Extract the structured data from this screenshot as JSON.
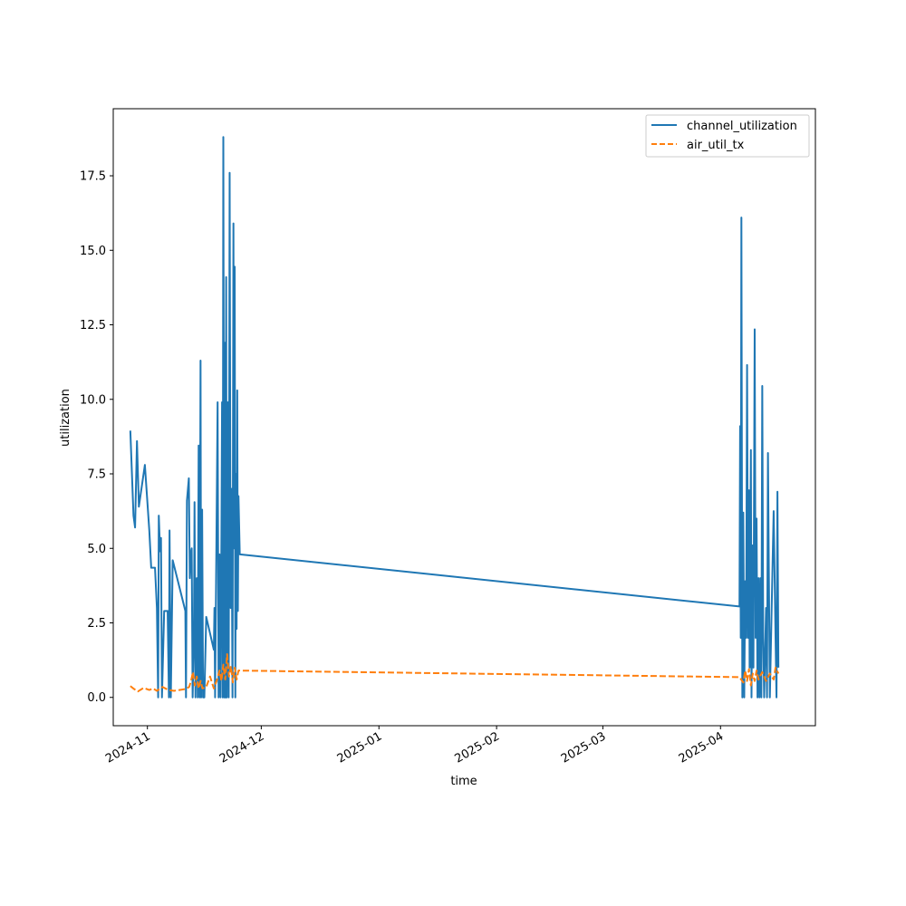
{
  "chart_data": {
    "type": "line",
    "xlabel": "time",
    "ylabel": "utilization",
    "x_axis_type": "date",
    "xlim": [
      "2024-10-23",
      "2025-04-26"
    ],
    "ylim": [
      -0.95,
      19.75
    ],
    "x_ticks": [
      {
        "date": "2024-11-01",
        "label": "2024-11"
      },
      {
        "date": "2024-12-01",
        "label": "2024-12"
      },
      {
        "date": "2025-01-01",
        "label": "2025-01"
      },
      {
        "date": "2025-02-01",
        "label": "2025-02"
      },
      {
        "date": "2025-03-01",
        "label": "2025-03"
      },
      {
        "date": "2025-04-01",
        "label": "2025-04"
      }
    ],
    "y_ticks": [
      {
        "value": 0,
        "label": "0.0"
      },
      {
        "value": 2.5,
        "label": "2.5"
      },
      {
        "value": 5,
        "label": "5.0"
      },
      {
        "value": 7.5,
        "label": "7.5"
      },
      {
        "value": 10,
        "label": "10.0"
      },
      {
        "value": 12.5,
        "label": "12.5"
      },
      {
        "value": 15,
        "label": "15.0"
      },
      {
        "value": 17.5,
        "label": "17.5"
      }
    ],
    "grid": false,
    "legend_position": "top-right",
    "series": [
      {
        "name": "channel_utilization",
        "color": "#1f77b4",
        "style": "solid",
        "points": [
          [
            "2024-10-27T12:00",
            8.95
          ],
          [
            "2024-10-28T08:00",
            6.1
          ],
          [
            "2024-10-28T18:00",
            5.7
          ],
          [
            "2024-10-29T06:00",
            8.6
          ],
          [
            "2024-10-29T18:00",
            6.4
          ],
          [
            "2024-10-31T08:00",
            7.8
          ],
          [
            "2024-11-01T12:00",
            5.6
          ],
          [
            "2024-11-02T00:00",
            4.35
          ],
          [
            "2024-11-03T00:00",
            4.35
          ],
          [
            "2024-11-03T12:00",
            3.0
          ],
          [
            "2024-11-03T20:00",
            0.0
          ],
          [
            "2024-11-04T00:00",
            6.1
          ],
          [
            "2024-11-04T08:00",
            4.9
          ],
          [
            "2024-11-04T14:00",
            5.35
          ],
          [
            "2024-11-04T20:00",
            0.0
          ],
          [
            "2024-11-05T10:00",
            2.9
          ],
          [
            "2024-11-06T08:00",
            2.9
          ],
          [
            "2024-11-06T16:00",
            0.0
          ],
          [
            "2024-11-06T20:00",
            5.6
          ],
          [
            "2024-11-07T04:00",
            0.0
          ],
          [
            "2024-11-07T16:00",
            4.6
          ],
          [
            "2024-11-11T00:00",
            2.9
          ],
          [
            "2024-11-11T04:00",
            0.0
          ],
          [
            "2024-11-11T10:00",
            6.6
          ],
          [
            "2024-11-11T22:00",
            7.35
          ],
          [
            "2024-11-12T04:00",
            4.0
          ],
          [
            "2024-11-12T10:00",
            4.8
          ],
          [
            "2024-11-12T16:00",
            5.0
          ],
          [
            "2024-11-12T22:00",
            0.0
          ],
          [
            "2024-11-13T06:00",
            2.0
          ],
          [
            "2024-11-13T10:00",
            6.55
          ],
          [
            "2024-11-13T16:00",
            0.0
          ],
          [
            "2024-11-14T00:00",
            4.0
          ],
          [
            "2024-11-14T06:00",
            0.0
          ],
          [
            "2024-11-14T12:00",
            8.45
          ],
          [
            "2024-11-14T18:00",
            0.0
          ],
          [
            "2024-11-15T00:00",
            11.3
          ],
          [
            "2024-11-15T04:00",
            0.0
          ],
          [
            "2024-11-15T10:00",
            6.3
          ],
          [
            "2024-11-15T16:00",
            0.0
          ],
          [
            "2024-11-16T00:00",
            0.0
          ],
          [
            "2024-11-16T12:00",
            2.7
          ],
          [
            "2024-11-18T12:00",
            1.6
          ],
          [
            "2024-11-18T16:00",
            3.0
          ],
          [
            "2024-11-18T20:00",
            0.0
          ],
          [
            "2024-11-19T12:00",
            9.9
          ],
          [
            "2024-11-19T18:00",
            0.0
          ],
          [
            "2024-11-20T00:00",
            4.8
          ],
          [
            "2024-11-20T06:00",
            0.0
          ],
          [
            "2024-11-20T12:00",
            5.4
          ],
          [
            "2024-11-20T16:00",
            9.9
          ],
          [
            "2024-11-20T20:00",
            0.0
          ],
          [
            "2024-11-21T00:00",
            18.8
          ],
          [
            "2024-11-21T06:00",
            0.0
          ],
          [
            "2024-11-21T10:00",
            11.9
          ],
          [
            "2024-11-21T14:00",
            0.0
          ],
          [
            "2024-11-21T18:00",
            14.1
          ],
          [
            "2024-11-21T22:00",
            0.0
          ],
          [
            "2024-11-22T04:00",
            9.9
          ],
          [
            "2024-11-22T10:00",
            0.0
          ],
          [
            "2024-11-22T16:00",
            17.6
          ],
          [
            "2024-11-22T22:00",
            3.0
          ],
          [
            "2024-11-23T04:00",
            7.0
          ],
          [
            "2024-11-23T10:00",
            0.0
          ],
          [
            "2024-11-23T16:00",
            15.9
          ],
          [
            "2024-11-23T20:00",
            5.0
          ],
          [
            "2024-11-24T00:00",
            14.45
          ],
          [
            "2024-11-24T04:00",
            0.0
          ],
          [
            "2024-11-24T08:00",
            7.5
          ],
          [
            "2024-11-24T12:00",
            2.3
          ],
          [
            "2024-11-24T16:00",
            10.3
          ],
          [
            "2024-11-24T20:00",
            2.9
          ],
          [
            "2024-11-25T00:00",
            6.75
          ],
          [
            "2024-11-25T08:00",
            4.8
          ],
          [
            "2025-04-06T00:00",
            3.05
          ],
          [
            "2025-04-06T04:00",
            9.1
          ],
          [
            "2025-04-06T08:00",
            2.0
          ],
          [
            "2025-04-06T12:00",
            16.1
          ],
          [
            "2025-04-06T18:00",
            0.0
          ],
          [
            "2025-04-07T00:00",
            6.2
          ],
          [
            "2025-04-07T06:00",
            0.0
          ],
          [
            "2025-04-07T12:00",
            3.9
          ],
          [
            "2025-04-07T18:00",
            2.0
          ],
          [
            "2025-04-08T00:00",
            11.15
          ],
          [
            "2025-04-08T06:00",
            2.0
          ],
          [
            "2025-04-08T12:00",
            6.95
          ],
          [
            "2025-04-08T16:00",
            1.0
          ],
          [
            "2025-04-09T00:00",
            8.3
          ],
          [
            "2025-04-09T04:00",
            0.0
          ],
          [
            "2025-04-09T10:00",
            5.1
          ],
          [
            "2025-04-09T16:00",
            1.0
          ],
          [
            "2025-04-10T00:00",
            12.35
          ],
          [
            "2025-04-10T06:00",
            2.0
          ],
          [
            "2025-04-10T12:00",
            6.0
          ],
          [
            "2025-04-10T18:00",
            0.0
          ],
          [
            "2025-04-11T00:00",
            4.0
          ],
          [
            "2025-04-11T06:00",
            0.0
          ],
          [
            "2025-04-11T12:00",
            4.0
          ],
          [
            "2025-04-11T18:00",
            0.0
          ],
          [
            "2025-04-12T00:00",
            10.45
          ],
          [
            "2025-04-12T06:00",
            2.0
          ],
          [
            "2025-04-12T12:00",
            0.0
          ],
          [
            "2025-04-13T00:00",
            3.0
          ],
          [
            "2025-04-13T06:00",
            0.0
          ],
          [
            "2025-04-13T12:00",
            8.2
          ],
          [
            "2025-04-13T18:00",
            4.0
          ],
          [
            "2025-04-14T00:00",
            0.0
          ],
          [
            "2025-04-15T00:00",
            6.25
          ],
          [
            "2025-04-15T12:00",
            2.0
          ],
          [
            "2025-04-15T18:00",
            0.0
          ],
          [
            "2025-04-16T00:00",
            6.9
          ],
          [
            "2025-04-16T06:00",
            1.0
          ]
        ]
      },
      {
        "name": "air_util_tx",
        "color": "#ff7f0e",
        "style": "dashed",
        "points": [
          [
            "2024-10-27T12:00",
            0.38
          ],
          [
            "2024-10-28T12:00",
            0.28
          ],
          [
            "2024-10-29T12:00",
            0.2
          ],
          [
            "2024-10-31T00:00",
            0.32
          ],
          [
            "2024-11-01T12:00",
            0.25
          ],
          [
            "2024-11-02T12:00",
            0.3
          ],
          [
            "2024-11-03T12:00",
            0.22
          ],
          [
            "2024-11-05T00:00",
            0.35
          ],
          [
            "2024-11-06T12:00",
            0.25
          ],
          [
            "2024-11-08T00:00",
            0.22
          ],
          [
            "2024-11-11T00:00",
            0.28
          ],
          [
            "2024-11-12T00:00",
            0.35
          ],
          [
            "2024-11-12T12:00",
            0.55
          ],
          [
            "2024-11-13T00:00",
            0.85
          ],
          [
            "2024-11-13T12:00",
            0.4
          ],
          [
            "2024-11-14T00:00",
            0.7
          ],
          [
            "2024-11-14T12:00",
            0.3
          ],
          [
            "2024-11-15T00:00",
            0.55
          ],
          [
            "2024-11-15T12:00",
            0.3
          ],
          [
            "2024-11-16T12:00",
            0.35
          ],
          [
            "2024-11-17T12:00",
            0.7
          ],
          [
            "2024-11-18T12:00",
            0.3
          ],
          [
            "2024-11-19T12:00",
            0.65
          ],
          [
            "2024-11-20T00:00",
            0.9
          ],
          [
            "2024-11-20T12:00",
            0.55
          ],
          [
            "2024-11-21T00:00",
            1.1
          ],
          [
            "2024-11-21T12:00",
            0.6
          ],
          [
            "2024-11-22T00:00",
            1.45
          ],
          [
            "2024-11-22T12:00",
            0.7
          ],
          [
            "2024-11-23T00:00",
            1.05
          ],
          [
            "2024-11-23T12:00",
            0.5
          ],
          [
            "2024-11-24T00:00",
            1.0
          ],
          [
            "2024-11-24T12:00",
            0.6
          ],
          [
            "2024-11-25T00:00",
            0.9
          ],
          [
            "2025-04-06T00:00",
            0.68
          ],
          [
            "2025-04-07T00:00",
            0.5
          ],
          [
            "2025-04-07T12:00",
            0.9
          ],
          [
            "2025-04-08T00:00",
            0.55
          ],
          [
            "2025-04-08T12:00",
            0.95
          ],
          [
            "2025-04-09T00:00",
            0.4
          ],
          [
            "2025-04-09T12:00",
            0.8
          ],
          [
            "2025-04-10T00:00",
            0.55
          ],
          [
            "2025-04-10T12:00",
            0.9
          ],
          [
            "2025-04-11T00:00",
            0.6
          ],
          [
            "2025-04-12T00:00",
            0.85
          ],
          [
            "2025-04-13T00:00",
            0.55
          ],
          [
            "2025-04-14T00:00",
            0.8
          ],
          [
            "2025-04-15T00:00",
            0.6
          ],
          [
            "2025-04-15T12:00",
            1.0
          ],
          [
            "2025-04-16T06:00",
            0.8
          ]
        ]
      }
    ]
  }
}
